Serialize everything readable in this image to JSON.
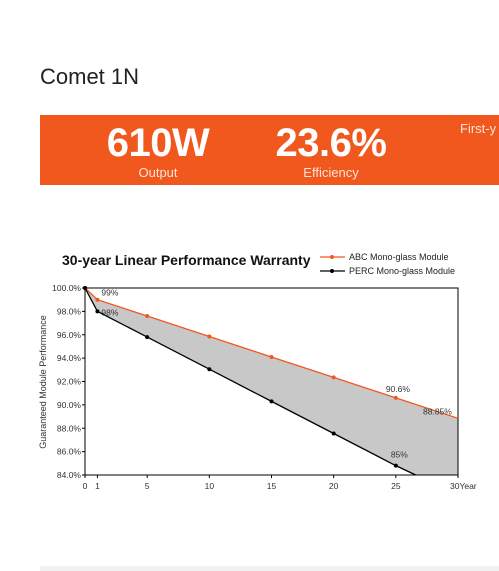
{
  "product": {
    "title": "Comet 1N"
  },
  "banner": {
    "stats": [
      {
        "value": "610W",
        "label": "Output"
      },
      {
        "value": "23.6%",
        "label": "Efficiency"
      },
      {
        "value": "",
        "label": "First-y"
      }
    ],
    "color": "#f0581e"
  },
  "chart_data": {
    "type": "line",
    "title": "30-year Linear Performance Warranty",
    "ylabel": "Guaranteed Module Performance",
    "xlabel": "",
    "xlim": [
      0,
      30
    ],
    "ylim": [
      84,
      100
    ],
    "x_ticks": [
      "0",
      "1",
      "5",
      "10",
      "15",
      "20",
      "25",
      "30Year"
    ],
    "y_ticks": [
      "84.0%",
      "86.0%",
      "88.0%",
      "90.0%",
      "92.0%",
      "94.0%",
      "96.0%",
      "98.0%",
      "100.0%"
    ],
    "legend_position": "top-right",
    "series": [
      {
        "name": "ABC Mono-glass Module",
        "color": "#f0581e",
        "x": [
          0,
          1,
          5,
          10,
          15,
          20,
          25,
          30
        ],
        "y": [
          100,
          99,
          97.6,
          95.85,
          94.1,
          92.35,
          90.6,
          88.85
        ]
      },
      {
        "name": "PERC Mono-glass Module",
        "color": "#000000",
        "x": [
          0,
          1,
          5,
          10,
          15,
          20,
          25,
          26.6
        ],
        "y": [
          100,
          98,
          95.8,
          93.05,
          90.3,
          87.55,
          84.8,
          84.0
        ]
      }
    ],
    "annotations": [
      {
        "text": "99%",
        "x": 1,
        "y": 99
      },
      {
        "text": "98%",
        "x": 1,
        "y": 98
      },
      {
        "text": "90.6%",
        "x": 25,
        "y": 90.6
      },
      {
        "text": "88.85%",
        "x": 30,
        "y": 88.85
      },
      {
        "text": "85%",
        "x": 25,
        "y": 84.8
      }
    ],
    "fill_between_color": "#c8c8c8"
  }
}
